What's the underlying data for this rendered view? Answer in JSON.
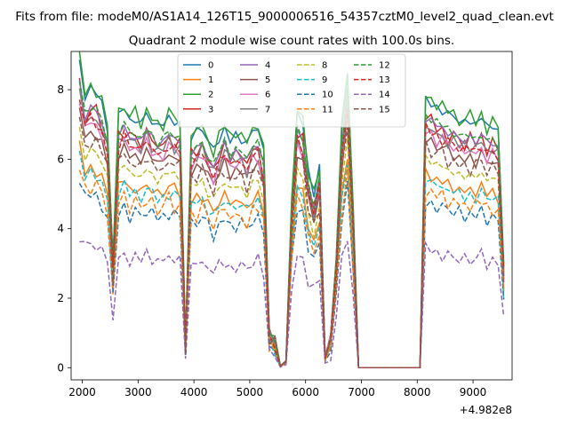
{
  "figure": {
    "suptitle": "Fits from file: modeM0/AS1A14_126T15_9000006516_54357cztM0_level2_quad_clean.evt",
    "offset_label": "+4.982e8"
  },
  "chart_data": {
    "type": "line",
    "title": "Quadrant 2 module wise count rates with 100.0s bins.",
    "xlabel": "",
    "ylabel": "",
    "x_offset": 498200000,
    "xlim": [
      1800,
      9700
    ],
    "ylim": [
      -0.35,
      9.1
    ],
    "xticks": [
      2000,
      3000,
      4000,
      5000,
      6000,
      7000,
      8000,
      9000
    ],
    "yticks": [
      0,
      2,
      4,
      6,
      8
    ],
    "grid": false,
    "legend": {
      "position": "top-center",
      "columns": 4
    },
    "x": [
      1950,
      2050,
      2150,
      2250,
      2350,
      2450,
      2550,
      2650,
      2750,
      2850,
      2950,
      3050,
      3150,
      3250,
      3350,
      3450,
      3550,
      3650,
      3750,
      3850,
      3950,
      4050,
      4150,
      4250,
      4350,
      4450,
      4550,
      4650,
      4750,
      4850,
      4950,
      5050,
      5150,
      5250,
      5350,
      5450,
      5550,
      5650,
      5750,
      5850,
      5950,
      6050,
      6150,
      6250,
      6350,
      6450,
      6550,
      6650,
      6750,
      6850,
      6950,
      7050,
      7950,
      8050,
      8150,
      8250,
      8350,
      8450,
      8550,
      8650,
      8750,
      8850,
      8950,
      9050,
      9150,
      9250,
      9350,
      9450,
      9550
    ],
    "series": [
      {
        "name": "0",
        "color": "#1f77b4",
        "dash": "solid",
        "scale": 1.0
      },
      {
        "name": "1",
        "color": "#ff7f0e",
        "dash": "solid",
        "scale": 0.72
      },
      {
        "name": "2",
        "color": "#2ca02c",
        "dash": "solid",
        "scale": 1.01
      },
      {
        "name": "3",
        "color": "#d62728",
        "dash": "solid",
        "scale": 0.92
      },
      {
        "name": "4",
        "color": "#9467bd",
        "dash": "solid",
        "scale": 0.93
      },
      {
        "name": "5",
        "color": "#8c564b",
        "dash": "solid",
        "scale": 0.85
      },
      {
        "name": "6",
        "color": "#e377c2",
        "dash": "solid",
        "scale": 0.88
      },
      {
        "name": "7",
        "color": "#7f7f7f",
        "dash": "solid",
        "scale": 0.9
      },
      {
        "name": "8",
        "color": "#bcbd22",
        "dash": "dashed",
        "scale": 0.78
      },
      {
        "name": "9",
        "color": "#17becf",
        "dash": "dashed",
        "scale": 0.7
      },
      {
        "name": "10",
        "color": "#1f77b4",
        "dash": "dashed",
        "scale": 0.62
      },
      {
        "name": "11",
        "color": "#ff7f0e",
        "dash": "dashed",
        "scale": 0.66
      },
      {
        "name": "12",
        "color": "#2ca02c",
        "dash": "dashed",
        "scale": 0.94
      },
      {
        "name": "13",
        "color": "#d62728",
        "dash": "dashed",
        "scale": 0.89
      },
      {
        "name": "14",
        "color": "#9467bd",
        "dash": "dashed",
        "scale": 0.44
      },
      {
        "name": "15",
        "color": "#8c564b",
        "dash": "dashed",
        "scale": 0.82
      }
    ],
    "base_profile": [
      8.8,
      7.8,
      8.0,
      7.9,
      7.6,
      6.9,
      3.1,
      7.2,
      7.5,
      7.1,
      7.2,
      7.0,
      7.3,
      7.1,
      6.9,
      7.0,
      7.2,
      7.1,
      7.0,
      0.7,
      6.6,
      6.8,
      6.9,
      6.5,
      6.2,
      6.6,
      6.9,
      6.5,
      6.7,
      6.6,
      6.4,
      6.8,
      6.9,
      6.2,
      1.0,
      0.8,
      0.05,
      0.2,
      4.8,
      7.3,
      7.0,
      5.6,
      5.0,
      5.8,
      0.3,
      0.9,
      3.2,
      6.8,
      8.5,
      4.6,
      0.0,
      0.0,
      0.0,
      0.0,
      7.7,
      7.6,
      7.5,
      7.4,
      7.3,
      7.2,
      7.1,
      7.0,
      7.1,
      7.0,
      7.2,
      6.9,
      7.0,
      6.8,
      3.0
    ],
    "noise": [
      0.1,
      -0.15,
      0.2,
      -0.05,
      0.15,
      -0.2,
      0.05,
      0.25,
      -0.1,
      0.1,
      -0.25,
      0.15,
      0.05,
      -0.15,
      0.2,
      -0.05,
      0.1,
      -0.2,
      0.15,
      0.0,
      -0.1,
      0.2,
      -0.15,
      0.05,
      0.25,
      -0.2,
      0.1,
      -0.05,
      0.15,
      -0.25,
      0.2,
      0.05,
      -0.1,
      0.15,
      0.0,
      0.0,
      0.0,
      0.0,
      -0.2,
      0.15,
      -0.05,
      0.2,
      -0.15,
      0.1,
      0.0,
      0.05,
      -0.1,
      0.15,
      -0.05,
      0.1,
      0.0,
      0.0,
      0.0,
      0.0,
      0.2,
      -0.15,
      0.1,
      -0.2,
      0.15,
      0.05,
      -0.1,
      0.25,
      -0.15,
      0.1,
      -0.05,
      0.2,
      -0.2,
      0.1,
      0.0
    ]
  }
}
